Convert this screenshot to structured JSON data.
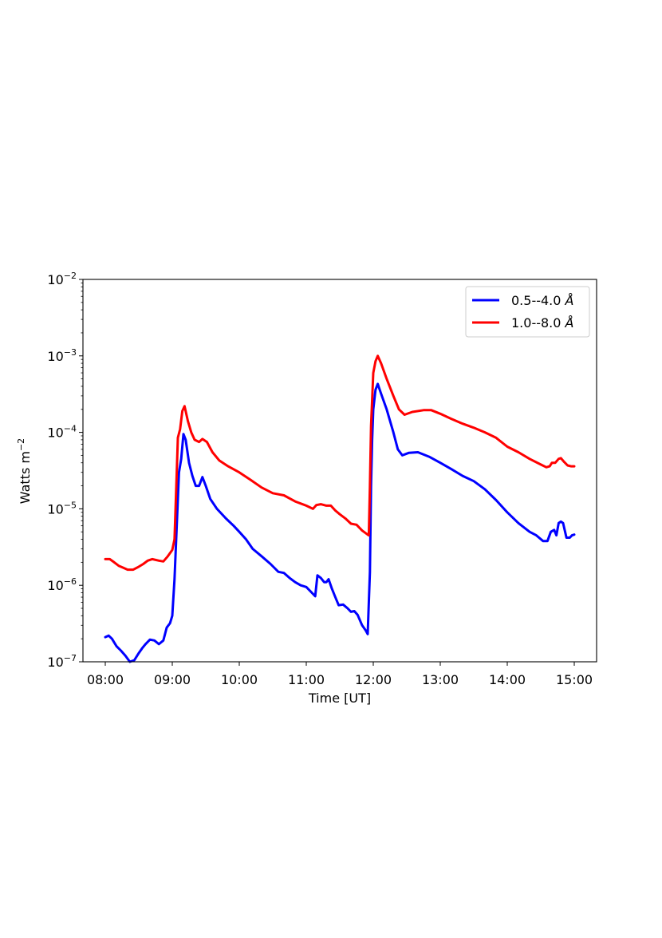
{
  "chart_data": {
    "type": "line",
    "title": "",
    "xlabel": "Time [UT]",
    "ylabel": "Watts m",
    "ylabel_sup": "−2",
    "yscale": "log",
    "ylim": [
      1e-07,
      0.01
    ],
    "xlim": [
      "07:40",
      "15:20"
    ],
    "x_ticks": [
      "08:00",
      "09:00",
      "10:00",
      "11:00",
      "12:00",
      "13:00",
      "14:00",
      "15:00"
    ],
    "y_ticks": [
      {
        "value": 1e-07,
        "base": "10",
        "exp": "−7"
      },
      {
        "value": 1e-06,
        "base": "10",
        "exp": "−6"
      },
      {
        "value": 1e-05,
        "base": "10",
        "exp": "−5"
      },
      {
        "value": 0.0001,
        "base": "10",
        "exp": "−4"
      },
      {
        "value": 0.001,
        "base": "10",
        "exp": "−3"
      },
      {
        "value": 0.01,
        "base": "10",
        "exp": "−2"
      }
    ],
    "grid": false,
    "legend_position": "upper right",
    "series": [
      {
        "name": "0.5--4.0",
        "unit": "Å",
        "color": "#0000ff",
        "points": [
          [
            "08:00",
            2.1e-07
          ],
          [
            "08:03",
            2.2e-07
          ],
          [
            "08:06",
            2e-07
          ],
          [
            "08:10",
            1.6e-07
          ],
          [
            "08:14",
            1.4e-07
          ],
          [
            "08:18",
            1.2e-07
          ],
          [
            "08:22",
            1e-07
          ],
          [
            "08:26",
            1.05e-07
          ],
          [
            "08:30",
            1.3e-07
          ],
          [
            "08:33",
            1.5e-07
          ],
          [
            "08:36",
            1.7e-07
          ],
          [
            "08:40",
            1.95e-07
          ],
          [
            "08:44",
            1.9e-07
          ],
          [
            "08:48",
            1.7e-07
          ],
          [
            "08:52",
            1.9e-07
          ],
          [
            "08:55",
            2.8e-07
          ],
          [
            "08:58",
            3.2e-07
          ],
          [
            "09:00",
            4e-07
          ],
          [
            "09:02",
            1.2e-06
          ],
          [
            "09:04",
            6e-06
          ],
          [
            "09:06",
            3e-05
          ],
          [
            "09:08",
            4.5e-05
          ],
          [
            "09:10",
            9.5e-05
          ],
          [
            "09:12",
            8e-05
          ],
          [
            "09:15",
            4e-05
          ],
          [
            "09:18",
            2.7e-05
          ],
          [
            "09:21",
            2e-05
          ],
          [
            "09:24",
            2e-05
          ],
          [
            "09:27",
            2.6e-05
          ],
          [
            "09:30",
            2e-05
          ],
          [
            "09:34",
            1.35e-05
          ],
          [
            "09:40",
            1e-05
          ],
          [
            "09:48",
            7.5e-06
          ],
          [
            "09:55",
            6e-06
          ],
          [
            "10:00",
            5e-06
          ],
          [
            "10:06",
            4e-06
          ],
          [
            "10:12",
            3e-06
          ],
          [
            "10:20",
            2.4e-06
          ],
          [
            "10:28",
            1.9e-06
          ],
          [
            "10:35",
            1.5e-06
          ],
          [
            "10:40",
            1.45e-06
          ],
          [
            "10:45",
            1.25e-06
          ],
          [
            "10:50",
            1.1e-06
          ],
          [
            "10:55",
            1e-06
          ],
          [
            "11:00",
            9.5e-07
          ],
          [
            "11:05",
            8e-07
          ],
          [
            "11:08",
            7.2e-07
          ],
          [
            "11:10",
            1.35e-06
          ],
          [
            "11:13",
            1.25e-06
          ],
          [
            "11:16",
            1.1e-06
          ],
          [
            "11:18",
            1.1e-06
          ],
          [
            "11:20",
            1.2e-06
          ],
          [
            "11:23",
            9e-07
          ],
          [
            "11:26",
            7e-07
          ],
          [
            "11:29",
            5.5e-07
          ],
          [
            "11:33",
            5.6e-07
          ],
          [
            "11:37",
            5e-07
          ],
          [
            "11:40",
            4.5e-07
          ],
          [
            "11:43",
            4.6e-07
          ],
          [
            "11:46",
            4.1e-07
          ],
          [
            "11:50",
            3e-07
          ],
          [
            "11:53",
            2.6e-07
          ],
          [
            "11:55",
            2.3e-07
          ],
          [
            "11:57",
            1.5e-06
          ],
          [
            "11:58",
            2e-05
          ],
          [
            "11:59",
            8e-05
          ],
          [
            "12:00",
            0.0002
          ],
          [
            "12:02",
            0.00036
          ],
          [
            "12:04",
            0.00043
          ],
          [
            "12:07",
            0.00032
          ],
          [
            "12:12",
            0.0002
          ],
          [
            "12:18",
            0.0001
          ],
          [
            "12:22",
            6e-05
          ],
          [
            "12:26",
            5e-05
          ],
          [
            "12:32",
            5.4e-05
          ],
          [
            "12:40",
            5.5e-05
          ],
          [
            "12:50",
            4.8e-05
          ],
          [
            "13:00",
            4e-05
          ],
          [
            "13:10",
            3.3e-05
          ],
          [
            "13:20",
            2.7e-05
          ],
          [
            "13:30",
            2.3e-05
          ],
          [
            "13:40",
            1.8e-05
          ],
          [
            "13:50",
            1.3e-05
          ],
          [
            "14:00",
            9e-06
          ],
          [
            "14:10",
            6.5e-06
          ],
          [
            "14:20",
            5e-06
          ],
          [
            "14:26",
            4.5e-06
          ],
          [
            "14:32",
            3.8e-06
          ],
          [
            "14:36",
            3.8e-06
          ],
          [
            "14:39",
            5e-06
          ],
          [
            "14:42",
            5.3e-06
          ],
          [
            "14:44",
            4.5e-06
          ],
          [
            "14:46",
            6.5e-06
          ],
          [
            "14:48",
            6.8e-06
          ],
          [
            "14:50",
            6.5e-06
          ],
          [
            "14:53",
            4.2e-06
          ],
          [
            "14:56",
            4.2e-06
          ],
          [
            "14:58",
            4.5e-06
          ],
          [
            "15:00",
            4.6e-06
          ]
        ]
      },
      {
        "name": "1.0--8.0",
        "unit": "Å",
        "color": "#ff0000",
        "points": [
          [
            "08:00",
            2.2e-06
          ],
          [
            "08:04",
            2.2e-06
          ],
          [
            "08:08",
            2e-06
          ],
          [
            "08:12",
            1.8e-06
          ],
          [
            "08:16",
            1.7e-06
          ],
          [
            "08:20",
            1.6e-06
          ],
          [
            "08:25",
            1.6e-06
          ],
          [
            "08:30",
            1.75e-06
          ],
          [
            "08:34",
            1.9e-06
          ],
          [
            "08:38",
            2.1e-06
          ],
          [
            "08:42",
            2.2e-06
          ],
          [
            "08:48",
            2.1e-06
          ],
          [
            "08:52",
            2.05e-06
          ],
          [
            "08:56",
            2.4e-06
          ],
          [
            "09:00",
            2.9e-06
          ],
          [
            "09:02",
            4e-06
          ],
          [
            "09:04",
            3e-05
          ],
          [
            "09:05",
            8.5e-05
          ],
          [
            "09:07",
            0.00011
          ],
          [
            "09:09",
            0.00019
          ],
          [
            "09:11",
            0.00022
          ],
          [
            "09:14",
            0.00014
          ],
          [
            "09:17",
            0.0001
          ],
          [
            "09:20",
            8e-05
          ],
          [
            "09:24",
            7.5e-05
          ],
          [
            "09:27",
            8.2e-05
          ],
          [
            "09:31",
            7.5e-05
          ],
          [
            "09:36",
            5.5e-05
          ],
          [
            "09:42",
            4.3e-05
          ],
          [
            "09:50",
            3.6e-05
          ],
          [
            "10:00",
            3e-05
          ],
          [
            "10:10",
            2.4e-05
          ],
          [
            "10:20",
            1.9e-05
          ],
          [
            "10:30",
            1.6e-05
          ],
          [
            "10:40",
            1.5e-05
          ],
          [
            "10:50",
            1.25e-05
          ],
          [
            "11:00",
            1.1e-05
          ],
          [
            "11:06",
            1e-05
          ],
          [
            "11:09",
            1.12e-05
          ],
          [
            "11:13",
            1.15e-05
          ],
          [
            "11:18",
            1.1e-05
          ],
          [
            "11:22",
            1.1e-05
          ],
          [
            "11:26",
            9.5e-06
          ],
          [
            "11:30",
            8.5e-06
          ],
          [
            "11:35",
            7.5e-06
          ],
          [
            "11:40",
            6.4e-06
          ],
          [
            "11:45",
            6.2e-06
          ],
          [
            "11:50",
            5.2e-06
          ],
          [
            "11:55",
            4.6e-06
          ],
          [
            "11:56",
            4.5e-06
          ],
          [
            "11:57",
            2e-05
          ],
          [
            "11:58",
            0.00012
          ],
          [
            "12:00",
            0.0006
          ],
          [
            "12:02",
            0.00085
          ],
          [
            "12:04",
            0.001
          ],
          [
            "12:07",
            0.0008
          ],
          [
            "12:12",
            0.0005
          ],
          [
            "12:18",
            0.0003
          ],
          [
            "12:23",
            0.0002
          ],
          [
            "12:28",
            0.00017
          ],
          [
            "12:35",
            0.000185
          ],
          [
            "12:45",
            0.000195
          ],
          [
            "12:52",
            0.000195
          ],
          [
            "13:00",
            0.000175
          ],
          [
            "13:10",
            0.00015
          ],
          [
            "13:20",
            0.00013
          ],
          [
            "13:30",
            0.000115
          ],
          [
            "13:40",
            0.0001
          ],
          [
            "13:50",
            8.5e-05
          ],
          [
            "14:00",
            6.5e-05
          ],
          [
            "14:10",
            5.5e-05
          ],
          [
            "14:20",
            4.5e-05
          ],
          [
            "14:30",
            3.8e-05
          ],
          [
            "14:35",
            3.5e-05
          ],
          [
            "14:38",
            3.6e-05
          ],
          [
            "14:40",
            4e-05
          ],
          [
            "14:43",
            4e-05
          ],
          [
            "14:46",
            4.5e-05
          ],
          [
            "14:48",
            4.6e-05
          ],
          [
            "14:51",
            4.1e-05
          ],
          [
            "14:54",
            3.7e-05
          ],
          [
            "14:57",
            3.6e-05
          ],
          [
            "15:00",
            3.6e-05
          ]
        ]
      }
    ]
  }
}
